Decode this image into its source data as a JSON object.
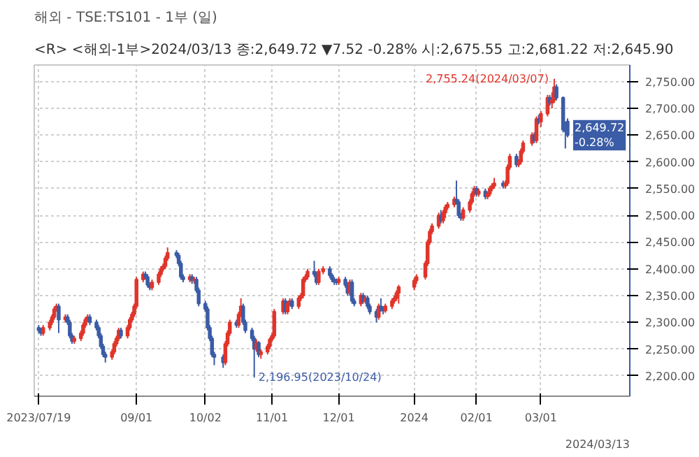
{
  "chart_data": {
    "type": "candlestick",
    "title": "해외 - TSE:TS101 - 1부 (일)",
    "subtitle": "<R> <해외-1부>2024/03/13 종:2,649.72 ▼7.52 -0.28% 시:2,675.55 고:2,681.22 저:2,645.90",
    "x": [
      "2023-07-19",
      "2023-07-20",
      "2023-07-21",
      "2023-07-24",
      "2023-07-25",
      "2023-07-26",
      "2023-07-27",
      "2023-07-28",
      "2023-07-31",
      "2023-08-01",
      "2023-08-02",
      "2023-08-03",
      "2023-08-04",
      "2023-08-07",
      "2023-08-08",
      "2023-08-09",
      "2023-08-10",
      "2023-08-11",
      "2023-08-14",
      "2023-08-15",
      "2023-08-16",
      "2023-08-17",
      "2023-08-18",
      "2023-08-21",
      "2023-08-22",
      "2023-08-23",
      "2023-08-24",
      "2023-08-25",
      "2023-08-28",
      "2023-08-29",
      "2023-08-30",
      "2023-08-31",
      "2023-09-01",
      "2023-09-04",
      "2023-09-05",
      "2023-09-06",
      "2023-09-07",
      "2023-09-08",
      "2023-09-11",
      "2023-09-12",
      "2023-09-13",
      "2023-09-14",
      "2023-09-15",
      "2023-09-19",
      "2023-09-20",
      "2023-09-21",
      "2023-09-22",
      "2023-09-25",
      "2023-09-26",
      "2023-09-27",
      "2023-09-28",
      "2023-09-29",
      "2023-10-02",
      "2023-10-03",
      "2023-10-04",
      "2023-10-05",
      "2023-10-06",
      "2023-10-10",
      "2023-10-11",
      "2023-10-12",
      "2023-10-13",
      "2023-10-16",
      "2023-10-17",
      "2023-10-18",
      "2023-10-19",
      "2023-10-20",
      "2023-10-23",
      "2023-10-24",
      "2023-10-25",
      "2023-10-26",
      "2023-10-27",
      "2023-10-30",
      "2023-10-31",
      "2023-11-01",
      "2023-11-02",
      "2023-11-06",
      "2023-11-07",
      "2023-11-08",
      "2023-11-09",
      "2023-11-10",
      "2023-11-13",
      "2023-11-14",
      "2023-11-15",
      "2023-11-16",
      "2023-11-17",
      "2023-11-20",
      "2023-11-21",
      "2023-11-22",
      "2023-11-24",
      "2023-11-27",
      "2023-11-28",
      "2023-11-29",
      "2023-11-30",
      "2023-12-01",
      "2023-12-04",
      "2023-12-05",
      "2023-12-06",
      "2023-12-07",
      "2023-12-08",
      "2023-12-11",
      "2023-12-12",
      "2023-12-13",
      "2023-12-14",
      "2023-12-15",
      "2023-12-18",
      "2023-12-19",
      "2023-12-20",
      "2023-12-21",
      "2023-12-22",
      "2023-12-25",
      "2023-12-26",
      "2023-12-27",
      "2023-12-28",
      "2024-01-04",
      "2024-01-05",
      "2024-01-09",
      "2024-01-10",
      "2024-01-11",
      "2024-01-12",
      "2024-01-15",
      "2024-01-16",
      "2024-01-17",
      "2024-01-18",
      "2024-01-19",
      "2024-01-22",
      "2024-01-23",
      "2024-01-24",
      "2024-01-25",
      "2024-01-26",
      "2024-01-29",
      "2024-01-30",
      "2024-01-31",
      "2024-02-01",
      "2024-02-02",
      "2024-02-05",
      "2024-02-06",
      "2024-02-07",
      "2024-02-08",
      "2024-02-09",
      "2024-02-13",
      "2024-02-14",
      "2024-02-15",
      "2024-02-16",
      "2024-02-19",
      "2024-02-20",
      "2024-02-21",
      "2024-02-22",
      "2024-02-26",
      "2024-02-27",
      "2024-02-28",
      "2024-02-29",
      "2024-03-01",
      "2024-03-04",
      "2024-03-05",
      "2024-03-06",
      "2024-03-07",
      "2024-03-08",
      "2024-03-11",
      "2024-03-12",
      "2024-03-13"
    ],
    "ohlc": [
      [
        2290,
        2295,
        2280,
        2285
      ],
      [
        2285,
        2290,
        2275,
        2280
      ],
      [
        2280,
        2295,
        2275,
        2290
      ],
      [
        2290,
        2305,
        2285,
        2300
      ],
      [
        2300,
        2315,
        2295,
        2310
      ],
      [
        2310,
        2330,
        2305,
        2325
      ],
      [
        2325,
        2335,
        2320,
        2330
      ],
      [
        2330,
        2335,
        2280,
        2305
      ],
      [
        2305,
        2315,
        2300,
        2310
      ],
      [
        2310,
        2315,
        2295,
        2300
      ],
      [
        2300,
        2305,
        2270,
        2275
      ],
      [
        2275,
        2280,
        2260,
        2265
      ],
      [
        2265,
        2275,
        2260,
        2270
      ],
      [
        2270,
        2285,
        2265,
        2280
      ],
      [
        2280,
        2300,
        2275,
        2295
      ],
      [
        2295,
        2310,
        2290,
        2305
      ],
      [
        2305,
        2315,
        2300,
        2310
      ],
      [
        2310,
        2315,
        2295,
        2300
      ],
      [
        2300,
        2305,
        2285,
        2290
      ],
      [
        2290,
        2295,
        2270,
        2275
      ],
      [
        2275,
        2280,
        2250,
        2255
      ],
      [
        2255,
        2260,
        2235,
        2240
      ],
      [
        2240,
        2245,
        2225,
        2235
      ],
      [
        2235,
        2250,
        2230,
        2245
      ],
      [
        2245,
        2265,
        2240,
        2260
      ],
      [
        2260,
        2275,
        2255,
        2270
      ],
      [
        2270,
        2290,
        2265,
        2285
      ],
      [
        2285,
        2290,
        2270,
        2275
      ],
      [
        2275,
        2295,
        2270,
        2290
      ],
      [
        2290,
        2310,
        2285,
        2305
      ],
      [
        2305,
        2320,
        2300,
        2315
      ],
      [
        2315,
        2335,
        2310,
        2330
      ],
      [
        2330,
        2385,
        2325,
        2380
      ],
      [
        2380,
        2395,
        2375,
        2390
      ],
      [
        2390,
        2395,
        2380,
        2385
      ],
      [
        2385,
        2390,
        2365,
        2370
      ],
      [
        2370,
        2375,
        2360,
        2365
      ],
      [
        2365,
        2380,
        2360,
        2375
      ],
      [
        2375,
        2395,
        2370,
        2390
      ],
      [
        2390,
        2405,
        2385,
        2400
      ],
      [
        2400,
        2410,
        2395,
        2405
      ],
      [
        2405,
        2425,
        2400,
        2420
      ],
      [
        2420,
        2440,
        2415,
        2430
      ],
      [
        2430,
        2435,
        2420,
        2425
      ],
      [
        2425,
        2430,
        2405,
        2410
      ],
      [
        2410,
        2415,
        2380,
        2385
      ],
      [
        2385,
        2390,
        2375,
        2380
      ],
      [
        2380,
        2390,
        2375,
        2385
      ],
      [
        2385,
        2390,
        2372,
        2378
      ],
      [
        2378,
        2385,
        2372,
        2380
      ],
      [
        2380,
        2385,
        2355,
        2360
      ],
      [
        2360,
        2365,
        2330,
        2335
      ],
      [
        2335,
        2340,
        2320,
        2325
      ],
      [
        2325,
        2330,
        2285,
        2290
      ],
      [
        2290,
        2295,
        2265,
        2270
      ],
      [
        2270,
        2275,
        2235,
        2240
      ],
      [
        2240,
        2245,
        2220,
        2235
      ],
      [
        2235,
        2240,
        2215,
        2225
      ],
      [
        2225,
        2265,
        2220,
        2260
      ],
      [
        2260,
        2285,
        2255,
        2280
      ],
      [
        2280,
        2305,
        2275,
        2300
      ],
      [
        2300,
        2305,
        2290,
        2295
      ],
      [
        2295,
        2320,
        2290,
        2315
      ],
      [
        2315,
        2345,
        2310,
        2330
      ],
      [
        2330,
        2335,
        2295,
        2300
      ],
      [
        2300,
        2305,
        2280,
        2285
      ],
      [
        2285,
        2290,
        2265,
        2270
      ],
      [
        2270,
        2275,
        2196.95,
        2250
      ],
      [
        2250,
        2268,
        2245,
        2262
      ],
      [
        2262,
        2265,
        2235,
        2240
      ],
      [
        2240,
        2250,
        2232,
        2245
      ],
      [
        2245,
        2260,
        2240,
        2255
      ],
      [
        2255,
        2272,
        2250,
        2268
      ],
      [
        2268,
        2280,
        2263,
        2275
      ],
      [
        2275,
        2325,
        2270,
        2320
      ],
      [
        2320,
        2345,
        2315,
        2340
      ],
      [
        2340,
        2345,
        2315,
        2320
      ],
      [
        2320,
        2340,
        2315,
        2335
      ],
      [
        2335,
        2345,
        2330,
        2340
      ],
      [
        2340,
        2345,
        2325,
        2330
      ],
      [
        2330,
        2350,
        2325,
        2345
      ],
      [
        2345,
        2355,
        2340,
        2350
      ],
      [
        2350,
        2385,
        2345,
        2380
      ],
      [
        2380,
        2390,
        2375,
        2385
      ],
      [
        2385,
        2400,
        2380,
        2395
      ],
      [
        2395,
        2415,
        2385,
        2390
      ],
      [
        2390,
        2395,
        2370,
        2375
      ],
      [
        2375,
        2400,
        2370,
        2395
      ],
      [
        2395,
        2405,
        2390,
        2400
      ],
      [
        2400,
        2405,
        2383,
        2388
      ],
      [
        2388,
        2392,
        2375,
        2380
      ],
      [
        2380,
        2385,
        2370,
        2376
      ],
      [
        2376,
        2382,
        2370,
        2375
      ],
      [
        2375,
        2385,
        2370,
        2380
      ],
      [
        2380,
        2385,
        2365,
        2370
      ],
      [
        2370,
        2375,
        2350,
        2355
      ],
      [
        2355,
        2380,
        2350,
        2375
      ],
      [
        2375,
        2380,
        2335,
        2340
      ],
      [
        2340,
        2345,
        2330,
        2335
      ],
      [
        2335,
        2355,
        2330,
        2350
      ],
      [
        2350,
        2355,
        2335,
        2340
      ],
      [
        2340,
        2350,
        2335,
        2345
      ],
      [
        2345,
        2350,
        2325,
        2330
      ],
      [
        2330,
        2335,
        2315,
        2320
      ],
      [
        2320,
        2325,
        2300,
        2310
      ],
      [
        2310,
        2335,
        2305,
        2330
      ],
      [
        2330,
        2345,
        2320,
        2325
      ],
      [
        2325,
        2330,
        2315,
        2322
      ],
      [
        2322,
        2335,
        2318,
        2330
      ],
      [
        2330,
        2345,
        2325,
        2340
      ],
      [
        2340,
        2350,
        2335,
        2345
      ],
      [
        2345,
        2360,
        2340,
        2355
      ],
      [
        2355,
        2370,
        2335,
        2366
      ],
      [
        2366,
        2383,
        2360,
        2378
      ],
      [
        2378,
        2390,
        2372,
        2385
      ],
      [
        2385,
        2415,
        2380,
        2410
      ],
      [
        2410,
        2455,
        2405,
        2450
      ],
      [
        2450,
        2475,
        2445,
        2470
      ],
      [
        2470,
        2485,
        2465,
        2480
      ],
      [
        2480,
        2505,
        2475,
        2500
      ],
      [
        2500,
        2510,
        2485,
        2490
      ],
      [
        2490,
        2510,
        2485,
        2505
      ],
      [
        2505,
        2520,
        2495,
        2515
      ],
      [
        2515,
        2525,
        2510,
        2520
      ],
      [
        2520,
        2535,
        2515,
        2530
      ],
      [
        2530,
        2565,
        2520,
        2525
      ],
      [
        2525,
        2530,
        2495,
        2500
      ],
      [
        2500,
        2505,
        2490,
        2495
      ],
      [
        2495,
        2515,
        2490,
        2510
      ],
      [
        2510,
        2530,
        2505,
        2525
      ],
      [
        2525,
        2545,
        2520,
        2540
      ],
      [
        2540,
        2555,
        2535,
        2550
      ],
      [
        2550,
        2555,
        2535,
        2540
      ],
      [
        2540,
        2550,
        2535,
        2545
      ],
      [
        2545,
        2550,
        2530,
        2535
      ],
      [
        2535,
        2545,
        2530,
        2540
      ],
      [
        2540,
        2555,
        2535,
        2550
      ],
      [
        2550,
        2560,
        2545,
        2555
      ],
      [
        2555,
        2570,
        2550,
        2560
      ],
      [
        2560,
        2565,
        2550,
        2555
      ],
      [
        2555,
        2565,
        2550,
        2560
      ],
      [
        2560,
        2595,
        2555,
        2590
      ],
      [
        2590,
        2615,
        2585,
        2610
      ],
      [
        2610,
        2615,
        2590,
        2595
      ],
      [
        2595,
        2605,
        2590,
        2600
      ],
      [
        2600,
        2625,
        2595,
        2620
      ],
      [
        2620,
        2640,
        2615,
        2635
      ],
      [
        2635,
        2655,
        2630,
        2650
      ],
      [
        2650,
        2655,
        2635,
        2640
      ],
      [
        2640,
        2685,
        2635,
        2680
      ],
      [
        2680,
        2688,
        2670,
        2675
      ],
      [
        2675,
        2695,
        2665,
        2690
      ],
      [
        2690,
        2725,
        2685,
        2720
      ],
      [
        2720,
        2725,
        2705,
        2710
      ],
      [
        2710,
        2730,
        2700,
        2715
      ],
      [
        2715,
        2755.24,
        2710,
        2740
      ],
      [
        2740,
        2745,
        2715,
        2720
      ],
      [
        2720,
        2722,
        2655,
        2660
      ],
      [
        2660,
        2675,
        2625,
        2657.24
      ],
      [
        2675.55,
        2681.22,
        2645.9,
        2649.72
      ]
    ],
    "xlim": [
      "2023-07-17",
      "2024-04-10"
    ],
    "xticks": [
      {
        "value": "2023-07-19",
        "label": "2023/07/19"
      },
      {
        "value": "2023-09-01",
        "label": "09/01"
      },
      {
        "value": "2023-10-02",
        "label": "10/02"
      },
      {
        "value": "2023-11-01",
        "label": "11/01"
      },
      {
        "value": "2023-12-01",
        "label": "12/01"
      },
      {
        "value": "2024-01-04",
        "label": "2024"
      },
      {
        "value": "2024-02-01",
        "label": "02/01"
      },
      {
        "value": "2024-03-01",
        "label": "03/01"
      }
    ],
    "ylim": [
      2162,
      2781
    ],
    "yticks": [
      {
        "value": 2200,
        "label": "2,200.00"
      },
      {
        "value": 2250,
        "label": "2,250.00"
      },
      {
        "value": 2300,
        "label": "2,300.00"
      },
      {
        "value": 2350,
        "label": "2,350.00"
      },
      {
        "value": 2400,
        "label": "2,400.00"
      },
      {
        "value": 2450,
        "label": "2,450.00"
      },
      {
        "value": 2500,
        "label": "2,500.00"
      },
      {
        "value": 2550,
        "label": "2,550.00"
      },
      {
        "value": 2600,
        "label": "2,600.00"
      },
      {
        "value": 2650,
        "label": "2,650.00"
      },
      {
        "value": 2700,
        "label": "2,700.00"
      },
      {
        "value": 2750,
        "label": "2,750.00"
      }
    ],
    "annotations": [
      {
        "text": "2,755.24(2024/03/07)",
        "x": "2024-03-07",
        "y": 2755.24
      },
      {
        "text": "2,196.95(2023/10/24)",
        "x": "2023-10-24",
        "y": 2196.95
      },
      {
        "text": "2,649.72\n-0.28%",
        "x": "2024-03-13",
        "y": 2649.72
      },
      "2024/03/13"
    ],
    "grid": true
  }
}
